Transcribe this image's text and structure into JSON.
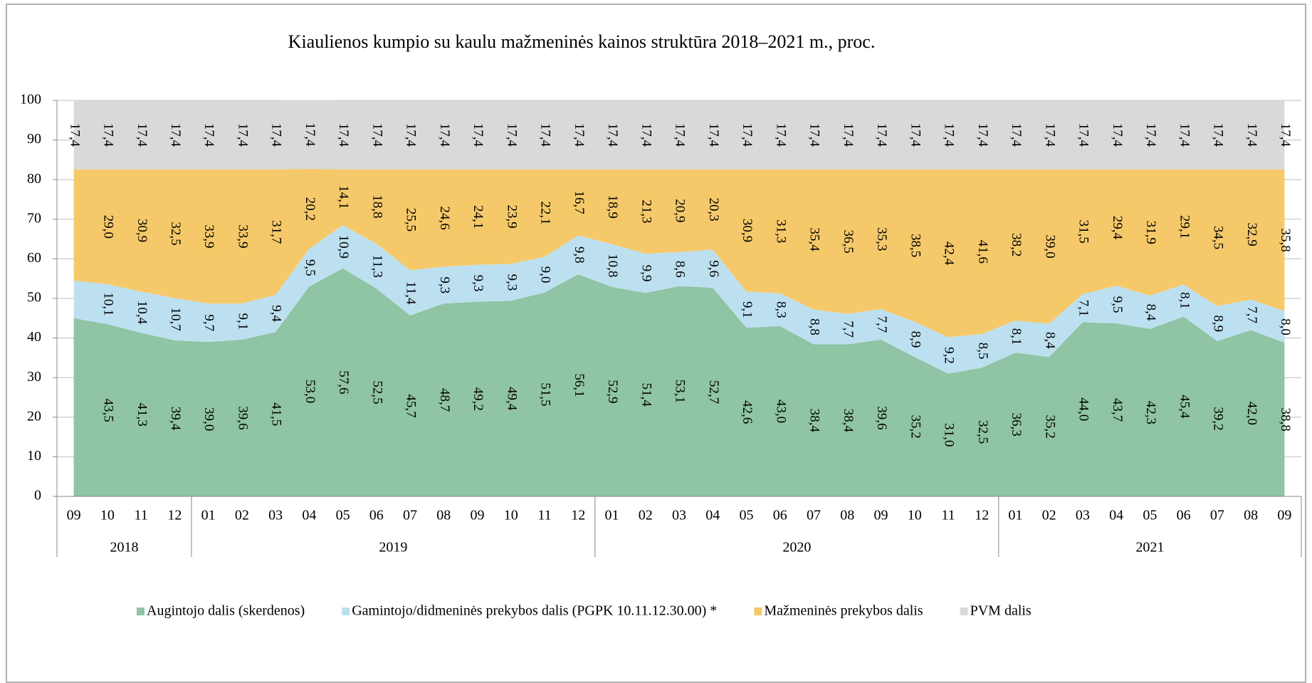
{
  "chart_data": {
    "type": "stacked_area",
    "title": "Kiaulienos kumpio su kaulu mažmeninės kainos struktūra 2018–2021 m., proc.",
    "categories": [
      "09",
      "10",
      "11",
      "12",
      "01",
      "02",
      "03",
      "04",
      "05",
      "06",
      "07",
      "08",
      "09",
      "10",
      "11",
      "12",
      "01",
      "02",
      "03",
      "04",
      "05",
      "06",
      "07",
      "08",
      "09",
      "10",
      "11",
      "12",
      "01",
      "02",
      "03",
      "04",
      "05",
      "06",
      "07",
      "08",
      "09"
    ],
    "years": [
      "2018",
      "2019",
      "2020",
      "2021"
    ],
    "ylim": [
      0,
      100
    ],
    "yticks": [
      0,
      10,
      20,
      30,
      40,
      50,
      60,
      70,
      80,
      90,
      100
    ],
    "series": [
      {
        "name": "Augintojo dalis (skerdenos)",
        "color": "#8fc4a4",
        "values": [
          45,
          43.5,
          41.3,
          39.4,
          39.0,
          39.6,
          41.5,
          53.0,
          57.6,
          52.5,
          45.7,
          48.7,
          49.2,
          49.4,
          51.5,
          56.1,
          52.9,
          51.4,
          53.1,
          52.7,
          42.6,
          43.0,
          38.4,
          38.4,
          39.6,
          35.2,
          31.0,
          32.5,
          36.3,
          35.2,
          44.0,
          43.7,
          42.3,
          45.4,
          39.2,
          42.0,
          38.8
        ],
        "value_labels": [
          null,
          "43,5",
          "41,3",
          "39,4",
          "39,0",
          "39,6",
          "41,5",
          "53,0",
          "57,6",
          "52,5",
          "45,7",
          "48,7",
          "49,2",
          "49,4",
          "51,5",
          "56,1",
          "52,9",
          "51,4",
          "53,1",
          "52,7",
          "42,6",
          "43,0",
          "38,4",
          "38,4",
          "39,6",
          "35,2",
          "31,0",
          "32,5",
          "36,3",
          "35,2",
          "44,0",
          "43,7",
          "42,3",
          "45,4",
          "39,2",
          "42,0",
          "38,8"
        ]
      },
      {
        "name": "Gamintojo/didmeninės prekybos dalis (PGPK 10.11.12.30.00) *",
        "color": "#bde0f0",
        "values": [
          9.5,
          10.1,
          10.4,
          10.7,
          9.7,
          9.1,
          9.4,
          9.5,
          10.9,
          11.3,
          11.4,
          9.3,
          9.3,
          9.3,
          9.0,
          9.8,
          10.8,
          9.9,
          8.6,
          9.6,
          9.1,
          8.3,
          8.8,
          7.7,
          7.7,
          8.9,
          9.2,
          8.5,
          8.1,
          8.4,
          7.1,
          9.5,
          8.4,
          8.1,
          8.9,
          7.7,
          8.0
        ],
        "value_labels": [
          null,
          "10,1",
          "10,4",
          "10,7",
          "9,7",
          "9,1",
          "9,4",
          "9,5",
          "10,9",
          "11,3",
          "11,4",
          "9,3",
          "9,3",
          "9,3",
          "9,0",
          "9,8",
          "10,8",
          "9,9",
          "8,6",
          "9,6",
          "9,1",
          "8,3",
          "8,8",
          "7,7",
          "7,7",
          "8,9",
          "9,2",
          "8,5",
          "8,1",
          "8,4",
          "7,1",
          "9,5",
          "8,4",
          "8,1",
          "8,9",
          "7,7",
          "8,0"
        ]
      },
      {
        "name": "Mažmeninės prekybos dalis",
        "color": "#f5c96a",
        "values": [
          28.1,
          29.0,
          30.9,
          32.5,
          33.9,
          33.9,
          31.7,
          20.2,
          14.1,
          18.8,
          25.5,
          24.6,
          24.1,
          23.9,
          22.1,
          16.7,
          18.9,
          21.3,
          20.9,
          20.3,
          30.9,
          31.3,
          35.4,
          36.5,
          35.3,
          38.5,
          42.4,
          41.6,
          38.2,
          39.0,
          31.5,
          29.4,
          31.9,
          29.1,
          34.5,
          32.9,
          35.8
        ],
        "value_labels": [
          null,
          "29,0",
          "30,9",
          "32,5",
          "33,9",
          "33,9",
          "31,7",
          "20,2",
          "14,1",
          "18,8",
          "25,5",
          "24,6",
          "24,1",
          "23,9",
          "22,1",
          "16,7",
          "18,9",
          "21,3",
          "20,9",
          "20,3",
          "30,9",
          "31,3",
          "35,4",
          "36,5",
          "35,3",
          "38,5",
          "42,4",
          "41,6",
          "38,2",
          "39,0",
          "31,5",
          "29,4",
          "31,9",
          "29,1",
          "34,5",
          "32,9",
          "35,8"
        ]
      },
      {
        "name": "PVM dalis",
        "color": "#d9d9d9",
        "values": [
          17.4,
          17.4,
          17.4,
          17.4,
          17.4,
          17.4,
          17.4,
          17.4,
          17.4,
          17.4,
          17.4,
          17.4,
          17.4,
          17.4,
          17.4,
          17.4,
          17.4,
          17.4,
          17.4,
          17.4,
          17.4,
          17.4,
          17.4,
          17.4,
          17.4,
          17.4,
          17.4,
          17.4,
          17.4,
          17.4,
          17.4,
          17.4,
          17.4,
          17.4,
          17.4,
          17.4,
          17.4
        ],
        "value_labels": [
          "17,4",
          "17,4",
          "17,4",
          "17,4",
          "17,4",
          "17,4",
          "17,4",
          "17,4",
          "17,4",
          "17,4",
          "17,4",
          "17,4",
          "17,4",
          "17,4",
          "17,4",
          "17,4",
          "17,4",
          "17,4",
          "17,4",
          "17,4",
          "17,4",
          "17,4",
          "17,4",
          "17,4",
          "17,4",
          "17,4",
          "17,4",
          "17,4",
          "17,4",
          "17,4",
          "17,4",
          "17,4",
          "17,4",
          "17,4",
          "17,4",
          "17,4",
          "17,4"
        ]
      }
    ],
    "grid": true,
    "legend": "bottom"
  }
}
